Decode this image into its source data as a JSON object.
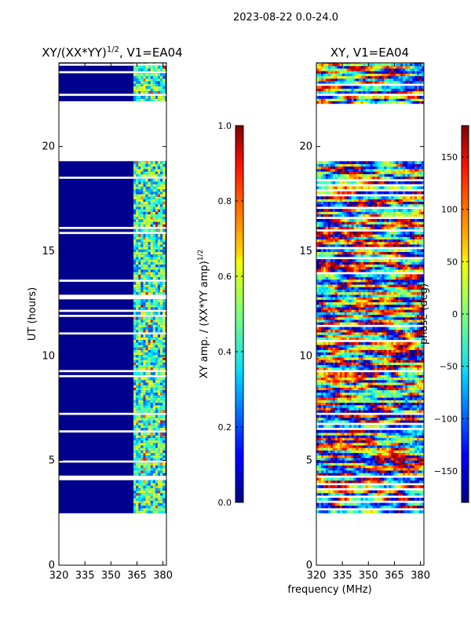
{
  "suptitle": "2023-08-22 0.0-24.0",
  "chart_data": [
    {
      "type": "heatmap",
      "title_main": "XY/(XX*YY)",
      "title_exp": "1/2",
      "title_tail": ", V1=EA04",
      "ylabel": "UT (hours)",
      "xlabel": "",
      "xlim": [
        320,
        382
      ],
      "ylim": [
        0,
        24
      ],
      "xticks": [
        "320",
        "335",
        "350",
        "365",
        "380"
      ],
      "yticks": [
        "0",
        "5",
        "10",
        "15",
        "20"
      ],
      "data_range_hours": [
        2.5,
        24
      ],
      "gap_hours": [
        19.2,
        22.0
      ],
      "active_band_mhz": [
        363,
        380
      ],
      "colorbar": {
        "label_main": "XY amp. / (XX*YY amp)",
        "label_exp": "1/2",
        "range": [
          0.0,
          1.0
        ],
        "ticks": [
          "0.0",
          "0.2",
          "0.4",
          "0.6",
          "0.8",
          "1.0"
        ]
      }
    },
    {
      "type": "heatmap",
      "title_main": "XY, V1=EA04",
      "xlabel": "frequency (MHz)",
      "xlim": [
        320,
        382
      ],
      "ylim": [
        0,
        24
      ],
      "xticks": [
        "320",
        "335",
        "350",
        "365",
        "380"
      ],
      "yticks": [
        "0",
        "5",
        "10",
        "15",
        "20"
      ],
      "data_range_hours": [
        2.5,
        24
      ],
      "gap_hours": [
        19.2,
        22.0
      ],
      "colorbar": {
        "label": "phase (deg)",
        "range": [
          -180,
          180
        ],
        "ticks": [
          "−150",
          "−100",
          "−50",
          "0",
          "50",
          "100",
          "150"
        ]
      }
    }
  ]
}
